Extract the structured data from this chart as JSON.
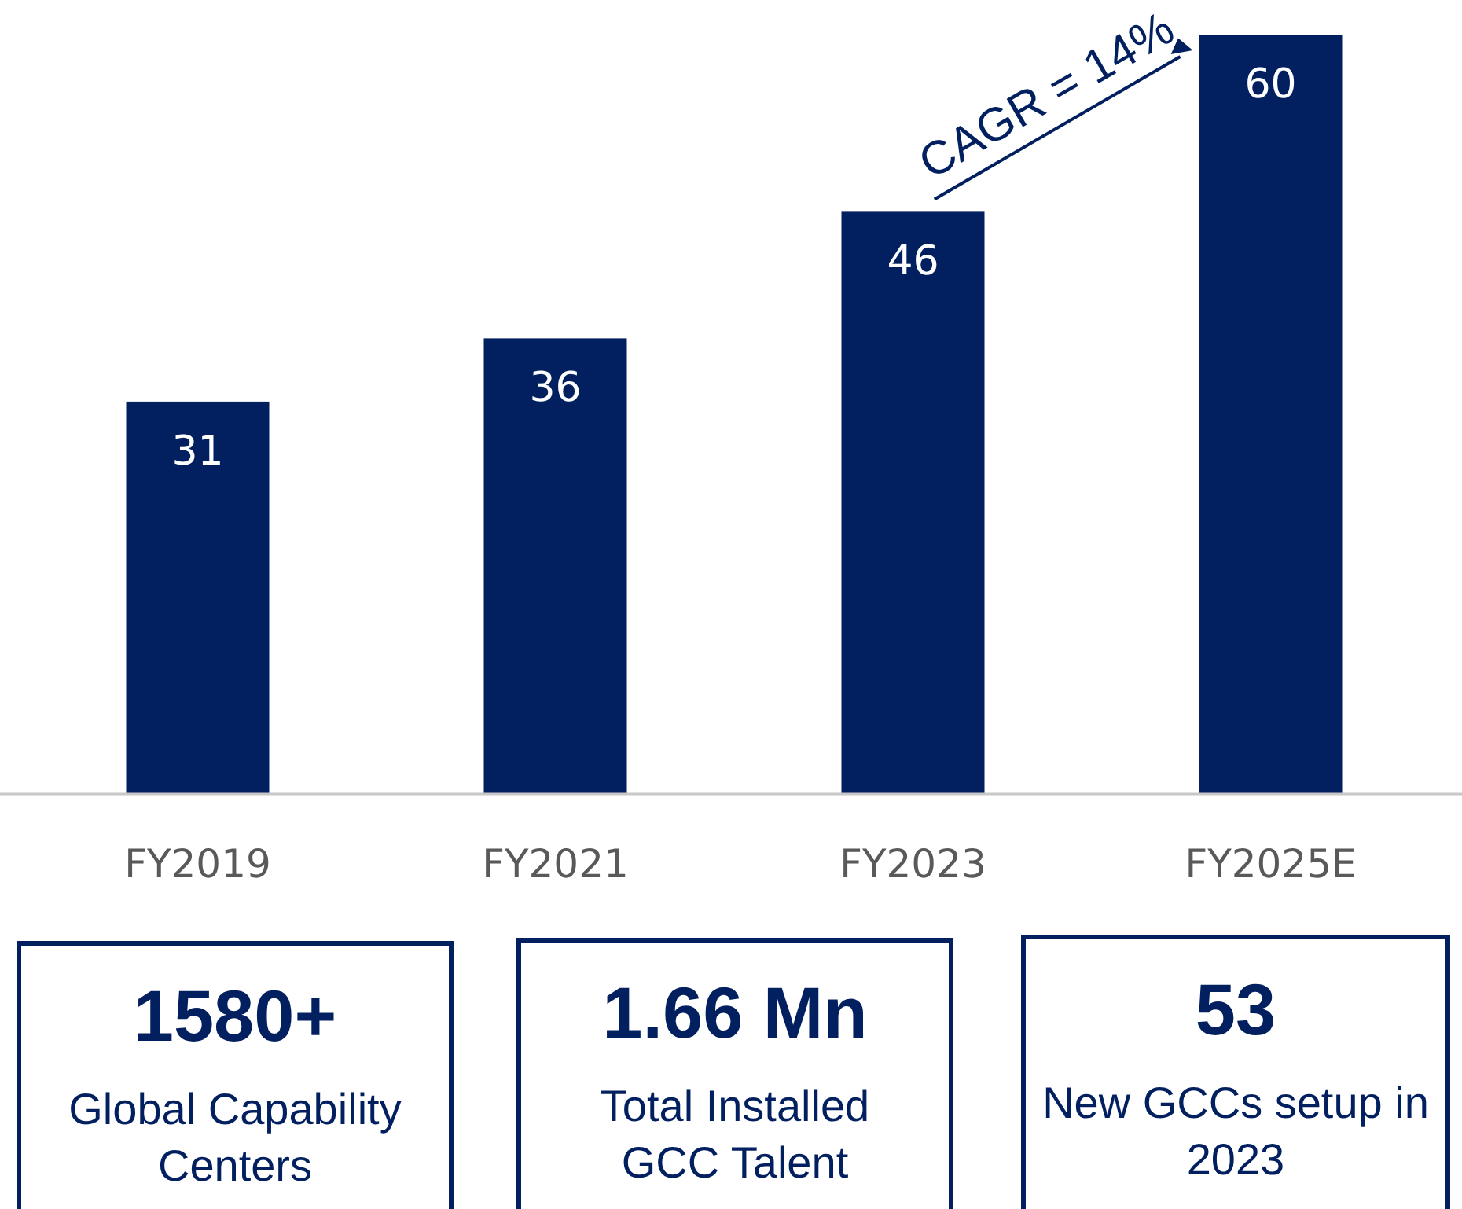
{
  "chart_data": [
    {
      "type": "bar",
      "categories": [
        "FY2019",
        "FY2021",
        "FY2023",
        "FY2025E"
      ],
      "values": [
        31,
        36,
        46,
        60
      ],
      "color": "#02205f",
      "data_labels": true,
      "annotations": [
        "CAGR = 14%"
      ]
    },
    {
      "type": "other",
      "title": "1580+",
      "subtitle": "Global Capability Centers"
    },
    {
      "type": "other",
      "title": "1.66 Mn",
      "subtitle": "Total Installed GCC Talent"
    },
    {
      "type": "other",
      "title": "53",
      "subtitle": "New GCCs setup in 2023"
    }
  ]
}
